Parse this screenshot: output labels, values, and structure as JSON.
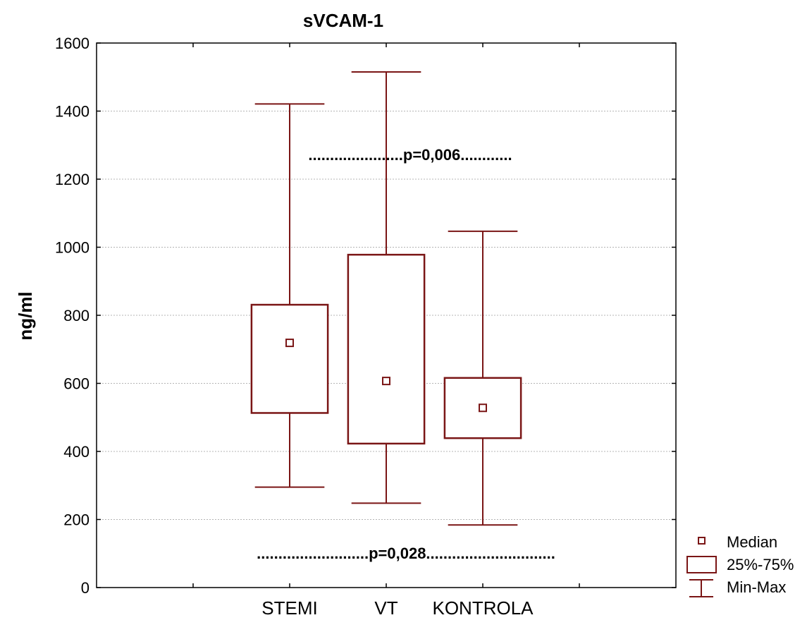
{
  "chart_data": {
    "type": "boxplot",
    "title": "sVCAM-1",
    "xlabel": "",
    "ylabel": "ng/ml",
    "ylim": [
      0,
      1600
    ],
    "yticks": [
      0,
      200,
      400,
      600,
      800,
      1000,
      1200,
      1400,
      1600
    ],
    "grid": true,
    "categories": [
      "STEMI",
      "VT",
      "KONTROLA"
    ],
    "series": [
      {
        "min": 295,
        "q1": 513,
        "median": 719,
        "q3": 831,
        "max": 1421
      },
      {
        "min": 248,
        "q1": 423,
        "median": 607,
        "q3": 978,
        "max": 1515
      },
      {
        "min": 184,
        "q1": 439,
        "median": 528,
        "q3": 616,
        "max": 1047
      }
    ],
    "annotations": [
      {
        "text": "......................p=0,006............",
        "y": 1270
      },
      {
        "text": "..........................p=0,028..............................",
        "y": 100
      }
    ],
    "legend": {
      "position": "bottom-right",
      "items": [
        "Median",
        "25%-75%",
        "Min-Max"
      ]
    },
    "colors": {
      "box": "#7a1515",
      "grid": "#b4b4b4",
      "axis": "#000000"
    }
  }
}
